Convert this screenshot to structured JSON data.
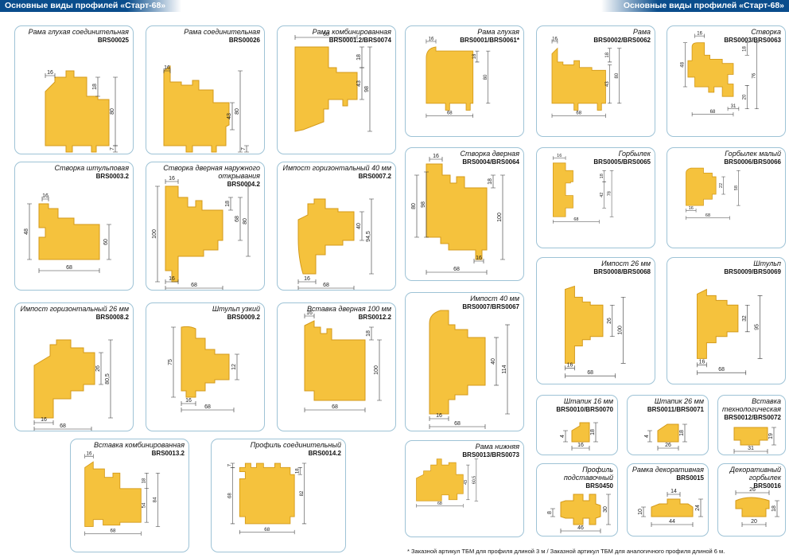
{
  "header": {
    "left": "Основные виды профилей «Старт-68»",
    "right": "Основные виды профилей «Старт-68»"
  },
  "colors": {
    "wood": "#f5c23d",
    "wood_edge": "#d49a1a",
    "frame": "#9ec3d6",
    "header_bg": "#0a4d8c"
  },
  "cards": [
    {
      "id": "c1",
      "title": "Рама глухая соединительная",
      "code": "BRS00025",
      "dims": [
        "16",
        "18",
        "80",
        "68",
        "7"
      ]
    },
    {
      "id": "c2",
      "title": "Рама соединительная",
      "code": "BRS00026",
      "dims": [
        "16",
        "43",
        "80",
        "68",
        "7"
      ]
    },
    {
      "id": "c3",
      "title": "Рама комбинированная",
      "code": "BRS0001.2/BRS0074",
      "dims": [
        "68",
        "18",
        "43",
        "98"
      ]
    },
    {
      "id": "c4",
      "title": "Рама глухая",
      "code": "BRS0001/BRS0061*",
      "dims": [
        "16",
        "18",
        "80",
        "68"
      ]
    },
    {
      "id": "c5",
      "title": "Рама",
      "code": "BRS0002/BRS0062",
      "dims": [
        "16",
        "18",
        "43",
        "80",
        "68"
      ]
    },
    {
      "id": "c6",
      "title": "Створка",
      "code": "BRS0003/BRS0063",
      "dims": [
        "16",
        "48",
        "18",
        "76",
        "20",
        "68",
        "31"
      ]
    },
    {
      "id": "c7",
      "title": "Створка штульповая",
      "code": "BRS0003.2",
      "dims": [
        "16",
        "48",
        "60",
        "68"
      ]
    },
    {
      "id": "c8",
      "title": "Створка дверная наружного открывания",
      "code": "BRS0004.2",
      "dims": [
        "16",
        "18",
        "100",
        "68",
        "80",
        "16",
        "68"
      ]
    },
    {
      "id": "c9",
      "title": "Импост горизонтальный 40 мм",
      "code": "BRS0007.2",
      "dims": [
        "40",
        "94,5",
        "16",
        "68"
      ]
    },
    {
      "id": "c10",
      "title": "Створка дверная",
      "code": "BRS0004/BRS0064",
      "dims": [
        "16",
        "18",
        "80",
        "98",
        "100",
        "16",
        "68"
      ]
    },
    {
      "id": "c11",
      "title": "Горбылек",
      "code": "BRS0005/BRS0065",
      "dims": [
        "16",
        "18",
        "42",
        "78",
        "68"
      ]
    },
    {
      "id": "c12",
      "title": "Горбылек малый",
      "code": "BRS0006/BRS0066",
      "dims": [
        "22",
        "58",
        "16",
        "68"
      ]
    },
    {
      "id": "c13",
      "title": "Импост горизонтальный 26 мм",
      "code": "BRS0008.2",
      "dims": [
        "26",
        "80,5",
        "16",
        "68"
      ]
    },
    {
      "id": "c14",
      "title": "Штульп узкий",
      "code": "BRS0009.2",
      "dims": [
        "75",
        "12",
        "16",
        "68"
      ]
    },
    {
      "id": "c15",
      "title": "Вставка дверная 100 мм",
      "code": "BRS0012.2",
      "dims": [
        "16",
        "18",
        "100",
        "68"
      ]
    },
    {
      "id": "c16",
      "title": "Импост 40 мм",
      "code": "BRS0007/BRS0067",
      "dims": [
        "40",
        "114",
        "16",
        "68"
      ]
    },
    {
      "id": "c17",
      "title": "Импост 26 мм",
      "code": "BRS0008/BRS0068",
      "dims": [
        "26",
        "100",
        "16",
        "68"
      ]
    },
    {
      "id": "c18",
      "title": "Штульп",
      "code": "BRS0009/BRS0069",
      "dims": [
        "32",
        "95",
        "16",
        "68"
      ]
    },
    {
      "id": "c19",
      "title": "Вставка комбинированная",
      "code": "BRS0013.2",
      "dims": [
        "16",
        "18",
        "54",
        "84",
        "68"
      ]
    },
    {
      "id": "c20",
      "title": "Профиль соединительный",
      "code": "BRS0014.2",
      "dims": [
        "7",
        "18",
        "68",
        "82",
        "68"
      ]
    },
    {
      "id": "c21",
      "title": "Рама нижняя",
      "code": "BRS0013/BRS0073",
      "dims": [
        "43",
        "60,5",
        "68"
      ]
    },
    {
      "id": "c22",
      "title": "Штапик 16 мм",
      "code": "BRS0010/BRS0070",
      "dims": [
        "4",
        "18",
        "16"
      ]
    },
    {
      "id": "c23",
      "title": "Штапик 26 мм",
      "code": "BRS0011/BRS0071",
      "dims": [
        "4",
        "18",
        "26"
      ]
    },
    {
      "id": "c24",
      "title": "Вставка технологическая",
      "code": "BRS0012/BRS0072",
      "dims": [
        "19",
        "31"
      ]
    },
    {
      "id": "c25",
      "title": "Профиль подставочный",
      "code": "BRS0450",
      "dims": [
        "8",
        "30",
        "46"
      ]
    },
    {
      "id": "c26",
      "title": "Рамка декоративная",
      "code": "BRS0015",
      "dims": [
        "14",
        "10",
        "24",
        "44"
      ]
    },
    {
      "id": "c27",
      "title": "Декоративный горбылек",
      "code": "BRS0016",
      "dims": [
        "26",
        "18",
        "20"
      ]
    }
  ],
  "footnote": "*  Заказной артикул ТБМ для профиля длиной 3 м / Заказной артикул ТБМ для аналогичного профиля длиной 6 м."
}
